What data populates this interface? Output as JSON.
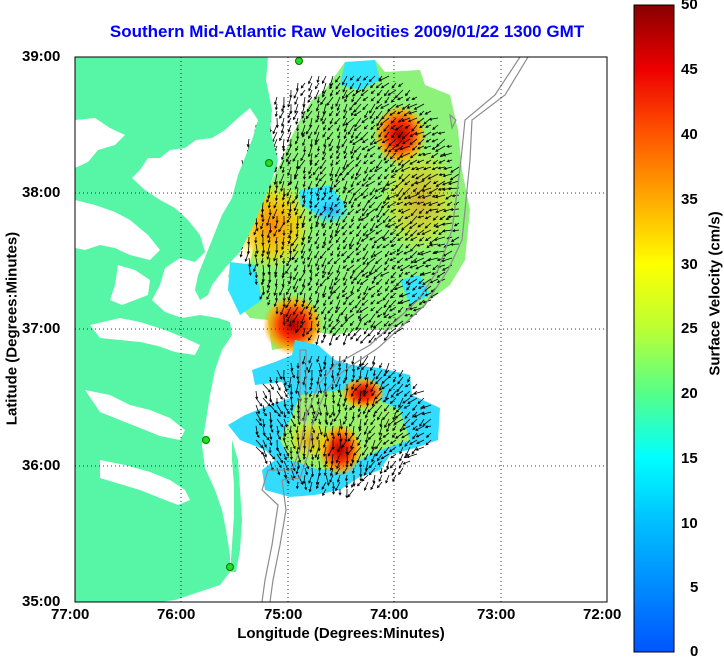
{
  "title": "Southern Mid-Atlantic Raw Velocities 2009/01/22 1300 GMT",
  "x_axis": {
    "label": "Longitude (Degrees:Minutes)",
    "ticks": [
      "77:00",
      "76:00",
      "75:00",
      "74:00",
      "73:00",
      "72:00"
    ]
  },
  "y_axis": {
    "label": "Latitude (Degrees:Minutes)",
    "ticks": [
      "39:00",
      "38:00",
      "37:00",
      "36:00",
      "35:00"
    ]
  },
  "colorbar": {
    "label": "Surface Velocity (cm/s)",
    "ticks": [
      "50",
      "45",
      "40",
      "35",
      "30",
      "25",
      "20",
      "15",
      "10",
      "5",
      "0"
    ],
    "range": [
      0,
      50
    ]
  },
  "colors": {
    "land": "#57f5a6",
    "title": "#0000ff",
    "vector": "#000000",
    "bathymetry": "#8c8c8c",
    "station": "#22dd22"
  },
  "chart_data": {
    "type": "heatmap",
    "title": "Southern Mid-Atlantic Raw Velocities 2009/01/22 1300 GMT",
    "xlabel": "Longitude (Degrees:Minutes)",
    "ylabel": "Latitude (Degrees:Minutes)",
    "xlim": [
      "77:00",
      "72:00"
    ],
    "ylim": [
      "35:00",
      "39:00"
    ],
    "colorbar_label": "Surface Velocity (cm/s)",
    "colorbar_range": [
      0,
      50
    ],
    "grid": true,
    "high_velocity_spots": [
      {
        "lon": "74:05",
        "lat": "38:25",
        "speed_cm_s": 42
      },
      {
        "lon": "75:00",
        "lat": "37:00",
        "speed_cm_s": 50
      },
      {
        "lon": "74:20",
        "lat": "36:30",
        "speed_cm_s": 45
      },
      {
        "lon": "74:25",
        "lat": "36:05",
        "speed_cm_s": 48
      },
      {
        "lon": "75:15",
        "lat": "37:50",
        "speed_cm_s": 35
      }
    ],
    "stations": [
      {
        "lon": "75:07",
        "lat": "38:56"
      },
      {
        "lon": "75:10",
        "lat": "38:10"
      },
      {
        "lon": "75:40",
        "lat": "36:12"
      },
      {
        "lon": "75:32",
        "lat": "35:14"
      }
    ]
  }
}
